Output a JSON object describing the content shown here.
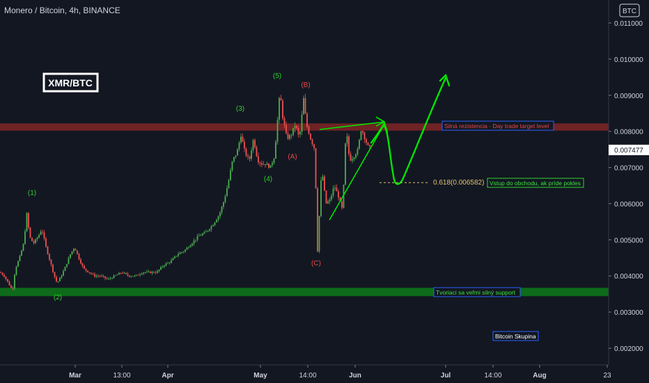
{
  "header": {
    "title": "Monero / Bitcoin, 4h, BINANCE"
  },
  "currency_badge": "BTC",
  "chart_data": {
    "type": "candlestick",
    "title": "Monero / Bitcoin, 4h, BINANCE",
    "symbol_box": "XMR/BTC",
    "ylim": [
      0.0017,
      0.0114
    ],
    "y_ticks": [
      {
        "value": 0.011,
        "label": "0.011000"
      },
      {
        "value": 0.01,
        "label": "0.010000"
      },
      {
        "value": 0.009,
        "label": "0.009000"
      },
      {
        "value": 0.008,
        "label": "0.008000"
      },
      {
        "value": 0.007,
        "label": "0.007000"
      },
      {
        "value": 0.006,
        "label": "0.006000"
      },
      {
        "value": 0.005,
        "label": "0.005000"
      },
      {
        "value": 0.004,
        "label": "0.004000"
      },
      {
        "value": 0.003,
        "label": "0.003000"
      },
      {
        "value": 0.002,
        "label": "0.002000"
      }
    ],
    "x_ticks": [
      "Mar",
      "13:00",
      "Apr",
      "May",
      "14:00",
      "Jun",
      "Jul",
      "14:00",
      "Aug",
      "23"
    ],
    "current_price": {
      "value": 0.007477,
      "label": "0.007477"
    },
    "price_path": [
      [
        0,
        0.0041
      ],
      [
        6,
        0.004
      ],
      [
        12,
        0.0038
      ],
      [
        18,
        0.0036
      ],
      [
        22,
        0.0042
      ],
      [
        28,
        0.0045
      ],
      [
        34,
        0.0049
      ],
      [
        39,
        0.0058
      ],
      [
        42,
        0.0051
      ],
      [
        48,
        0.0049
      ],
      [
        55,
        0.0051
      ],
      [
        60,
        0.0053
      ],
      [
        66,
        0.0048
      ],
      [
        72,
        0.0044
      ],
      [
        78,
        0.004
      ],
      [
        82,
        0.0038
      ],
      [
        88,
        0.004
      ],
      [
        95,
        0.0043
      ],
      [
        101,
        0.0046
      ],
      [
        107,
        0.0048
      ],
      [
        113,
        0.0045
      ],
      [
        120,
        0.0042
      ],
      [
        128,
        0.0041
      ],
      [
        136,
        0.004
      ],
      [
        145,
        0.004
      ],
      [
        155,
        0.0039
      ],
      [
        165,
        0.004
      ],
      [
        175,
        0.0041
      ],
      [
        185,
        0.004
      ],
      [
        195,
        0.004
      ],
      [
        205,
        0.0041
      ],
      [
        215,
        0.0041
      ],
      [
        225,
        0.0041
      ],
      [
        235,
        0.0043
      ],
      [
        245,
        0.0044
      ],
      [
        255,
        0.0046
      ],
      [
        265,
        0.0047
      ],
      [
        275,
        0.0049
      ],
      [
        285,
        0.0051
      ],
      [
        295,
        0.0052
      ],
      [
        305,
        0.0054
      ],
      [
        315,
        0.0057
      ],
      [
        322,
        0.0061
      ],
      [
        328,
        0.0066
      ],
      [
        334,
        0.0072
      ],
      [
        340,
        0.0074
      ],
      [
        346,
        0.0079
      ],
      [
        352,
        0.0074
      ],
      [
        358,
        0.0072
      ],
      [
        364,
        0.0078
      ],
      [
        370,
        0.0072
      ],
      [
        376,
        0.0071
      ],
      [
        382,
        0.0071
      ],
      [
        388,
        0.007
      ],
      [
        394,
        0.0073
      ],
      [
        398,
        0.0082
      ],
      [
        402,
        0.0091
      ],
      [
        406,
        0.0084
      ],
      [
        412,
        0.0078
      ],
      [
        418,
        0.0079
      ],
      [
        424,
        0.0082
      ],
      [
        430,
        0.0078
      ],
      [
        436,
        0.0089
      ],
      [
        440,
        0.0082
      ],
      [
        446,
        0.0078
      ],
      [
        452,
        0.0075
      ],
      [
        456,
        0.0047
      ],
      [
        462,
        0.007
      ],
      [
        468,
        0.006
      ],
      [
        474,
        0.0061
      ],
      [
        480,
        0.0065
      ],
      [
        486,
        0.0062
      ],
      [
        492,
        0.0058
      ],
      [
        497,
        0.0081
      ],
      [
        502,
        0.0072
      ],
      [
        508,
        0.0073
      ],
      [
        514,
        0.0075
      ],
      [
        519,
        0.0081
      ],
      [
        524,
        0.0078
      ],
      [
        528,
        0.0076
      ],
      [
        533,
        0.0075
      ]
    ],
    "zones": [
      {
        "name": "resistance",
        "from": 0.00802,
        "to": 0.00822,
        "color": "#802626"
      },
      {
        "name": "support",
        "from": 0.00344,
        "to": 0.00367,
        "color": "#0d6b1a"
      }
    ],
    "fib_level": {
      "label": "0.618(0.006582)",
      "value": 0.006582
    },
    "annotations": [
      {
        "text": "(1)",
        "color": "#2fd32f"
      },
      {
        "text": "(2)",
        "color": "#2fd32f"
      },
      {
        "text": "(3)",
        "color": "#2fd32f"
      },
      {
        "text": "(4)",
        "color": "#2fd32f"
      },
      {
        "text": "(5)",
        "color": "#2fd32f"
      },
      {
        "text": "(A)",
        "color": "#e84a4a"
      },
      {
        "text": "(B)",
        "color": "#e84a4a"
      },
      {
        "text": "(C)",
        "color": "#e84a4a"
      }
    ],
    "labels": {
      "resistance": "Silná rezistencia - Day trade target level",
      "entry": "Vstup do obchodu, ak príde pokles",
      "support": "Tvoriaci sa veľmi silný support",
      "group": "Bitcoin Skupina"
    },
    "colors": {
      "background": "#131722",
      "up": "#26a69a",
      "candle": "#4caf50",
      "down": "#ef5350",
      "arrow": "#00e600",
      "text": "#d1d4dc",
      "resistance_text": "#e84a4a",
      "support_text": "#39e639"
    }
  }
}
